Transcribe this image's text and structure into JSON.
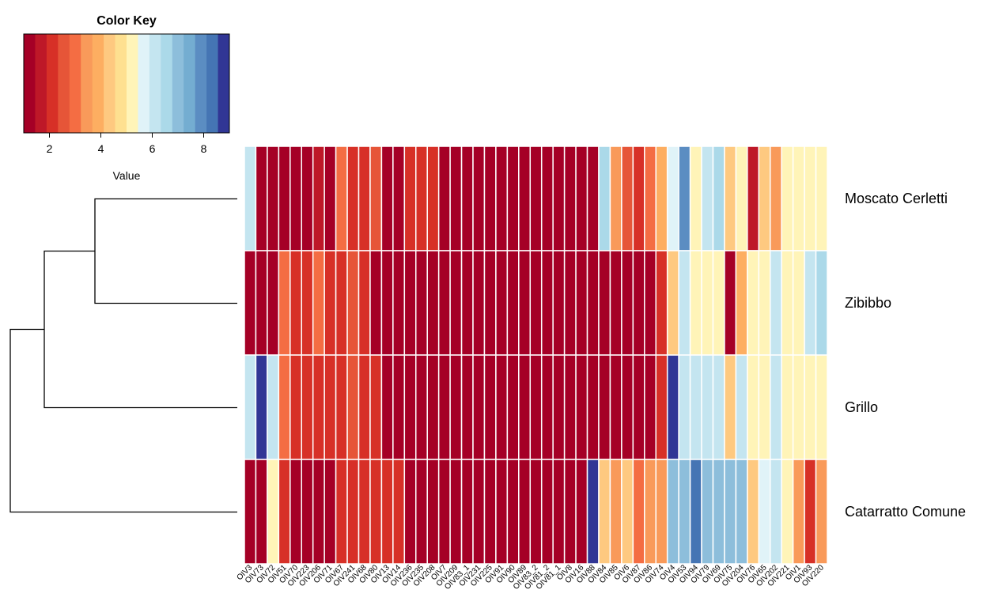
{
  "colors": [
    "#A50026",
    "#BE1828",
    "#D73027",
    "#E65538",
    "#F46D43",
    "#F99A5A",
    "#FDAE61",
    "#FEC980",
    "#FEE090",
    "#FFF4B8",
    "#E0F3F8",
    "#C4E5F0",
    "#ABD9E9",
    "#8DBEDB",
    "#74ADD1",
    "#5B8DC2",
    "#4575B4",
    "#313695"
  ],
  "chart_data": {
    "type": "heatmap",
    "color_key": {
      "title": "Color Key",
      "xlabel": "Value",
      "range": [
        1,
        9
      ],
      "ticks": [
        2,
        4,
        6,
        8
      ],
      "tick_labels": [
        "2",
        "4",
        "6",
        "8"
      ]
    },
    "rows": [
      "Moscato  Cerletti",
      "Zibibbo",
      "Grillo",
      "Catarratto  Comune"
    ],
    "columns": [
      "OIV3",
      "OIV73",
      "OIV72",
      "OIV51",
      "OIV70",
      "OIV223",
      "OIV206",
      "OIV71",
      "OIV67",
      "OIV241",
      "OIV68",
      "OIV80",
      "OIV13",
      "OIV14",
      "OIV236",
      "OIV235",
      "OIV208",
      "OIV7",
      "OIV209",
      "OIV83_1",
      "OIV231",
      "OIV225",
      "OIV91",
      "OIV90",
      "OIV89",
      "OIV83_2",
      "OIV81_2",
      "OIV81_1",
      "OIV8",
      "OIV16",
      "OIV88",
      "OIV84",
      "OIV85",
      "OIV6",
      "OIV87",
      "OIV86",
      "OIV74",
      "OIV4",
      "OIV53",
      "OIV94",
      "OIV79",
      "OIV69",
      "OIV75",
      "OIV204",
      "OIV76",
      "OIV65",
      "OIV202",
      "OIV221",
      "OIV1",
      "OIV93",
      "OIV220"
    ],
    "values": [
      [
        6,
        1,
        1,
        1,
        1,
        1,
        1.5,
        1,
        3,
        2,
        2,
        2.5,
        1,
        1,
        2,
        2,
        2,
        1,
        1,
        1,
        1,
        1,
        1,
        1,
        1,
        1,
        1,
        1,
        1,
        1,
        1,
        6.5,
        3.5,
        2.5,
        2,
        3,
        4,
        5.5,
        8,
        5,
        6,
        6.5,
        4.5,
        5,
        1.5,
        4.5,
        3.5,
        5,
        5,
        5,
        5
      ],
      [
        1,
        1,
        1,
        3,
        2,
        2,
        3,
        2,
        2,
        2.5,
        2,
        1,
        1,
        1,
        1,
        1,
        1,
        1,
        1,
        1,
        1,
        1,
        1,
        1,
        1,
        1,
        1,
        1,
        1,
        1,
        1,
        1,
        1,
        1,
        1,
        1,
        2,
        4.5,
        6,
        5,
        5,
        5,
        1,
        4,
        5,
        5,
        6,
        5,
        5,
        6,
        6.5
      ],
      [
        6,
        9,
        6,
        3,
        2,
        2,
        2,
        2,
        2,
        2.5,
        2,
        2,
        1,
        1,
        1,
        1,
        1,
        1,
        1,
        1,
        1,
        1,
        1,
        1,
        1,
        1,
        1,
        1,
        1,
        1,
        1,
        1,
        1,
        1,
        1,
        1,
        2,
        9,
        6,
        6,
        6,
        6,
        4.5,
        6,
        5,
        5,
        6,
        5,
        5,
        5,
        5
      ],
      [
        1,
        1,
        5,
        2,
        1,
        1,
        1,
        1,
        2,
        2,
        2,
        2,
        2,
        2,
        1,
        1,
        1,
        1,
        1,
        1,
        1,
        1,
        1,
        1,
        1,
        1,
        1,
        1,
        1,
        1,
        9,
        4.5,
        3.5,
        4.5,
        3,
        3.5,
        3.5,
        7,
        7,
        8.5,
        7,
        7,
        7,
        7,
        4.5,
        5.5,
        6,
        5,
        3.5,
        2,
        3.5
      ]
    ],
    "dendrogram": "((Moscato  Cerletti, Zibibbo), Grillo), Catarratto  Comune"
  }
}
